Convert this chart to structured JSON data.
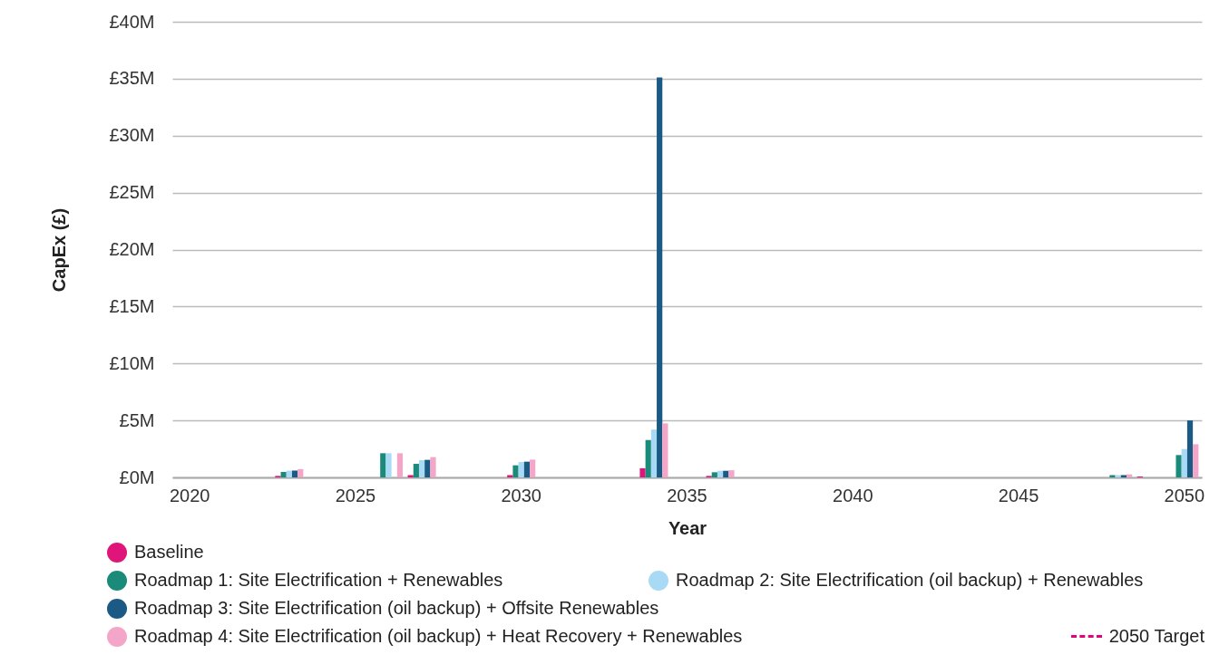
{
  "chart_data": {
    "type": "bar",
    "xlabel": "Year",
    "ylabel": "CapEx (£)",
    "categories": [
      "2020",
      null,
      null,
      null,
      null,
      "2025",
      null,
      null,
      null,
      null,
      "2030",
      null,
      null,
      null,
      null,
      "2035",
      null,
      null,
      null,
      null,
      "2040",
      null,
      null,
      null,
      null,
      "2045",
      null,
      null,
      null,
      null,
      "2050"
    ],
    "series": [
      {
        "name": "Baseline",
        "color": "#e0157a",
        "values": [
          null,
          null,
          null,
          0.13,
          null,
          null,
          null,
          0.2,
          null,
          null,
          0.2,
          null,
          null,
          null,
          0.8,
          null,
          0.13,
          null,
          null,
          null,
          null,
          null,
          null,
          null,
          null,
          null,
          null,
          null,
          null,
          0.08,
          null
        ]
      },
      {
        "name": "Roadmap 1: Site Electrification + Renewables",
        "color": "#1a8a7a",
        "values": [
          null,
          null,
          null,
          0.48,
          null,
          null,
          2.12,
          1.19,
          null,
          null,
          1.06,
          null,
          null,
          null,
          3.28,
          null,
          0.45,
          null,
          null,
          null,
          null,
          null,
          null,
          null,
          null,
          null,
          null,
          null,
          0.2,
          null,
          1.96
        ]
      },
      {
        "name": "Roadmap 2: Site Electrification (oil backup) + Renewables",
        "color": "#a8daf5",
        "values": [
          null,
          null,
          null,
          0.59,
          null,
          null,
          2.12,
          1.51,
          null,
          null,
          1.35,
          null,
          null,
          null,
          4.2,
          null,
          0.58,
          null,
          null,
          null,
          null,
          null,
          null,
          null,
          null,
          null,
          null,
          null,
          0.2,
          null,
          2.49
        ]
      },
      {
        "name": "Roadmap 3: Site Electrification (oil backup) + Offsite Renewables",
        "color": "#1a5a85",
        "values": [
          null,
          null,
          null,
          0.6,
          null,
          null,
          null,
          1.54,
          null,
          null,
          1.38,
          null,
          null,
          null,
          35.1,
          null,
          0.58,
          null,
          null,
          null,
          null,
          null,
          null,
          null,
          null,
          null,
          null,
          null,
          0.2,
          null,
          5.0
        ]
      },
      {
        "name": "Roadmap 4: Site Electrification (oil backup) + Heat Recovery + Renewables",
        "color": "#f4a6c9",
        "values": [
          null,
          null,
          null,
          0.73,
          null,
          null,
          2.12,
          1.78,
          null,
          null,
          1.56,
          null,
          null,
          null,
          4.74,
          null,
          0.63,
          null,
          null,
          null,
          null,
          null,
          null,
          null,
          null,
          null,
          null,
          null,
          0.27,
          null,
          2.91
        ]
      },
      {
        "name": "2050 Target",
        "type": "line",
        "line_style": "dashed",
        "color": "#e6007e",
        "values": [
          null,
          null,
          null,
          null,
          null,
          null,
          null,
          null,
          null,
          null,
          null,
          null,
          null,
          null,
          null,
          null,
          null,
          null,
          null,
          null,
          null,
          null,
          null,
          null,
          null,
          null,
          null,
          null,
          null,
          null,
          null
        ]
      }
    ],
    "ylim": [
      0,
      40
    ],
    "yticks": [
      {
        "value": 0,
        "label": "£0M"
      },
      {
        "value": 5,
        "label": "£5M"
      },
      {
        "value": 10,
        "label": "£10M"
      },
      {
        "value": 15,
        "label": "£15M"
      },
      {
        "value": 20,
        "label": "£20M"
      },
      {
        "value": 25,
        "label": "£25M"
      },
      {
        "value": 30,
        "label": "£30M"
      },
      {
        "value": 35,
        "label": "£35M"
      },
      {
        "value": 40,
        "label": "£40M"
      }
    ],
    "grid": "y",
    "legend": "bottom"
  }
}
